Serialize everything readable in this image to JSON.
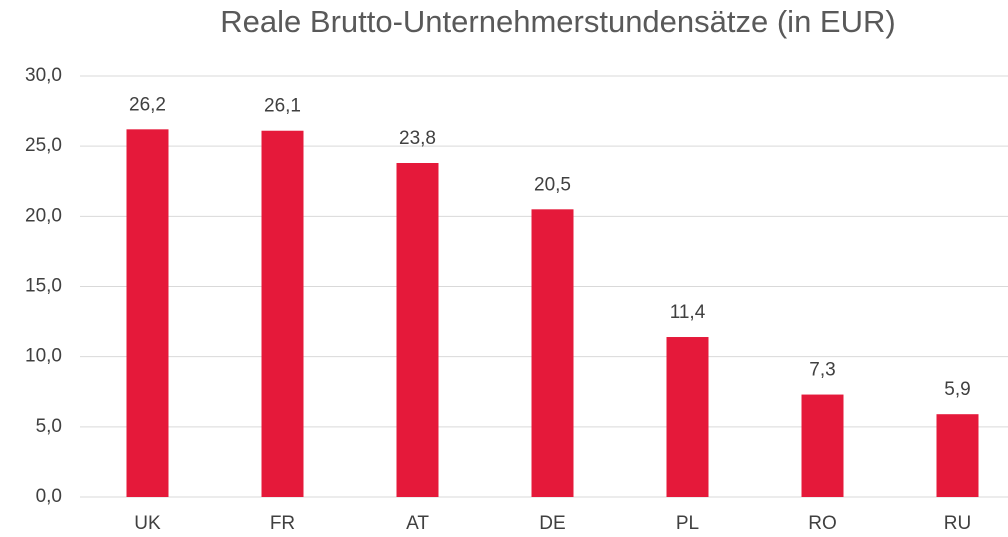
{
  "chart_data": {
    "type": "bar",
    "title": "Reale Brutto-Unternehmerstundensätze (in EUR)",
    "categories": [
      "UK",
      "FR",
      "AT",
      "DE",
      "PL",
      "RO",
      "RU"
    ],
    "values": [
      26.2,
      26.1,
      23.8,
      20.5,
      11.4,
      7.3,
      5.9
    ],
    "value_labels": [
      "26,2",
      "26,1",
      "23,8",
      "20,5",
      "11,4",
      "7,3",
      "5,9"
    ],
    "color": "#e5193a",
    "ylim": [
      0,
      30
    ],
    "yticks": [
      {
        "value": 0,
        "label": "0,0"
      },
      {
        "value": 5,
        "label": "5,0"
      },
      {
        "value": 10,
        "label": "10,0"
      },
      {
        "value": 15,
        "label": "15,0"
      },
      {
        "value": 20,
        "label": "20,0"
      },
      {
        "value": 25,
        "label": "25,0"
      },
      {
        "value": 30,
        "label": "30,0"
      }
    ],
    "grid": true
  }
}
